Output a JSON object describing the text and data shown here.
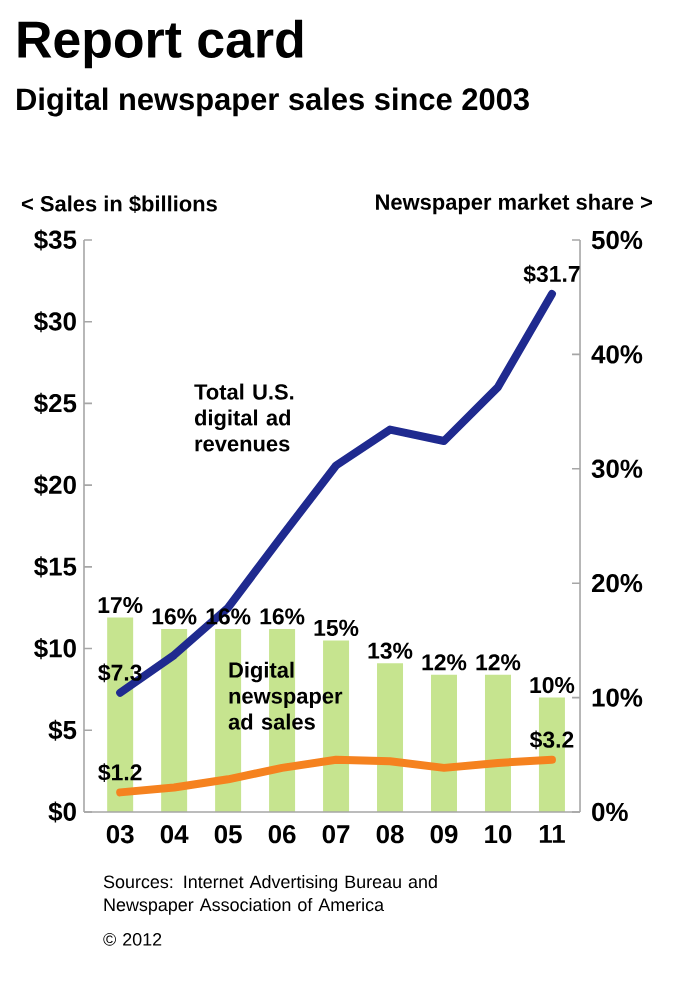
{
  "chart_data": {
    "type": "line",
    "title": "Report card",
    "subtitle": "Digital newspaper sales since 2003",
    "ylabel": "< Sales in $billions",
    "y2label": "Newspaper market share >",
    "categories": [
      "03",
      "04",
      "05",
      "06",
      "07",
      "08",
      "09",
      "10",
      "11"
    ],
    "series": [
      {
        "type": "bar",
        "axis": "y2",
        "color": "#c6e48f",
        "values": [
          17,
          16,
          16,
          16,
          15,
          13,
          12,
          12,
          10
        ],
        "value_labels": [
          "17%",
          "16%",
          "16%",
          "16%",
          "15%",
          "13%",
          "12%",
          "12%",
          "10%"
        ]
      },
      {
        "name": "Total U.S. digital ad revenues",
        "color": "#1f2a8f",
        "values": [
          7.3,
          9.6,
          12.5,
          16.9,
          21.2,
          23.4,
          22.7,
          26.0,
          31.7
        ],
        "value_labels": [
          "$7.3",
          null,
          null,
          null,
          null,
          null,
          null,
          null,
          "$31.7"
        ]
      },
      {
        "name": "Digital newspaper ad sales",
        "color": "#f5821f",
        "values": [
          1.2,
          1.5,
          2.0,
          2.7,
          3.2,
          3.1,
          2.7,
          3.0,
          3.2
        ],
        "value_labels": [
          "$1.2",
          null,
          null,
          null,
          null,
          null,
          null,
          null,
          "$3.2"
        ]
      }
    ],
    "ylim": [
      0,
      35
    ],
    "yticks": [
      {
        "value": 0,
        "label": "$0"
      },
      {
        "value": 5,
        "label": "$5"
      },
      {
        "value": 10,
        "label": "$10"
      },
      {
        "value": 15,
        "label": "$15"
      },
      {
        "value": 20,
        "label": "$20"
      },
      {
        "value": 25,
        "label": "$25"
      },
      {
        "value": 30,
        "label": "$30"
      },
      {
        "value": 35,
        "label": "$35"
      }
    ],
    "y2lim": [
      0,
      50
    ],
    "y2ticks": [
      {
        "value": 0,
        "label": "0%"
      },
      {
        "value": 10,
        "label": "10%"
      },
      {
        "value": 20,
        "label": "20%"
      },
      {
        "value": 30,
        "label": "30%"
      },
      {
        "value": 40,
        "label": "40%"
      },
      {
        "value": 50,
        "label": "50%"
      }
    ],
    "annotations": [
      "Sources: Internet Advertising Bureau and Newspaper Association of America",
      "© 2012"
    ]
  }
}
